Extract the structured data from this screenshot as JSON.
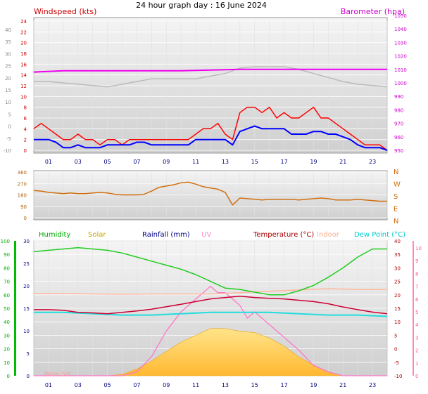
{
  "chart_data": [
    {
      "type": "line",
      "title": "24 hour graph day : 16 June 2024",
      "panel": "wind-pressure",
      "left_axis_label": "Windspeed (kts)",
      "right_axis_label": "Barometer (hpa)",
      "outer_left_ticks": [
        "40",
        "35",
        "30",
        "25",
        "20",
        "15",
        "10",
        "5",
        "0",
        "-5",
        "-10"
      ],
      "left_ticks": [
        "24",
        "22",
        "20",
        "18",
        "16",
        "14",
        "12",
        "10",
        "8",
        "6",
        "4",
        "2",
        "0"
      ],
      "left_range": [
        0,
        24
      ],
      "right_ticks": [
        "1050",
        "1040",
        "1030",
        "1020",
        "1010",
        "1000",
        "990",
        "980",
        "970",
        "960",
        "950"
      ],
      "right_range": [
        946,
        1052
      ],
      "x_ticks": [
        "01",
        "03",
        "05",
        "07",
        "09",
        "11",
        "13",
        "15",
        "17",
        "19",
        "21",
        "23"
      ],
      "x_range": [
        0,
        24
      ],
      "grid": true,
      "series": [
        {
          "color": "#ff0000",
          "x": [
            0,
            0.5,
            1,
            1.5,
            2,
            2.5,
            3,
            3.5,
            4,
            4.5,
            5,
            5.5,
            6,
            6.5,
            7,
            7.5,
            8,
            8.5,
            9,
            9.5,
            10,
            10.5,
            11,
            11.5,
            12,
            12.5,
            13,
            13.5,
            14,
            14.5,
            15,
            15.5,
            16,
            16.5,
            17,
            17.5,
            18,
            18.5,
            19,
            19.5,
            20,
            20.5,
            21,
            21.5,
            22,
            22.5,
            23,
            23.5,
            24
          ],
          "values": [
            4,
            5,
            4,
            3,
            2,
            2,
            3,
            2,
            2,
            1,
            2,
            2,
            1,
            2,
            2,
            2,
            2,
            2,
            2,
            2,
            2,
            2,
            3,
            4,
            4,
            5,
            3,
            2,
            7,
            8,
            8,
            7,
            8,
            6,
            7,
            6,
            6,
            7,
            8,
            6,
            6,
            5,
            4,
            3,
            2,
            1,
            1,
            1,
            0
          ]
        },
        {
          "color": "#0000ff",
          "x": [
            0,
            0.5,
            1,
            1.5,
            2,
            2.5,
            3,
            3.5,
            4,
            4.5,
            5,
            5.5,
            6,
            6.5,
            7,
            7.5,
            8,
            8.5,
            9,
            9.5,
            10,
            10.5,
            11,
            11.5,
            12,
            12.5,
            13,
            13.5,
            14,
            14.5,
            15,
            15.5,
            16,
            16.5,
            17,
            17.5,
            18,
            18.5,
            19,
            19.5,
            20,
            20.5,
            21,
            21.5,
            22,
            22.5,
            23,
            23.5,
            24
          ],
          "values": [
            2,
            2,
            2,
            1.5,
            0.5,
            0.5,
            1,
            0.5,
            0.5,
            0.5,
            1,
            1,
            1,
            1,
            1.5,
            1.5,
            1,
            1,
            1,
            1,
            1,
            1,
            2,
            2,
            2,
            2,
            2,
            1,
            3.5,
            4,
            4.5,
            4,
            4,
            4,
            4,
            3,
            3,
            3,
            3.5,
            3.5,
            3,
            3,
            2.5,
            2,
            1,
            0.5,
            0.5,
            0.5,
            0
          ]
        },
        {
          "color": "#bbbbbb",
          "x": [
            0,
            1,
            2,
            3,
            4,
            5,
            6,
            7,
            8,
            9,
            10,
            11,
            12,
            13,
            14,
            15,
            16,
            17,
            18,
            19,
            20,
            21,
            22,
            23,
            24
          ],
          "values": [
            1001,
            1001,
            1000,
            999,
            998,
            997,
            999,
            1001,
            1003,
            1003,
            1003,
            1003,
            1005,
            1007,
            1011,
            1012,
            1012,
            1012,
            1010,
            1007,
            1004,
            1001,
            999,
            998,
            997
          ]
        },
        {
          "color": "#ee00ee",
          "x": [
            0,
            2,
            4,
            6,
            8,
            10,
            12,
            14,
            16,
            18,
            20,
            22,
            24
          ],
          "values": [
            1008,
            1009,
            1009,
            1009,
            1009,
            1009,
            1009.5,
            1010,
            1010,
            1010,
            1010,
            1010,
            1010
          ]
        }
      ]
    },
    {
      "type": "line",
      "panel": "wind-direction",
      "left_ticks": [
        "360",
        "270",
        "180",
        "90",
        "0"
      ],
      "left_range": [
        0,
        360
      ],
      "right_ticks": [
        "N",
        "W",
        "S",
        "E",
        "N"
      ],
      "grid": true,
      "series": [
        {
          "color": "#d07010",
          "x": [
            0,
            0.5,
            1,
            1.5,
            2,
            2.5,
            3,
            3.5,
            4,
            4.5,
            5,
            5.5,
            6,
            6.5,
            7,
            7.5,
            8,
            8.5,
            9,
            9.5,
            10,
            10.5,
            11,
            11.5,
            12,
            12.5,
            13,
            13.5,
            14,
            14.5,
            15,
            15.5,
            16,
            16.5,
            17,
            17.5,
            18,
            18.5,
            19,
            19.5,
            20,
            20.5,
            21,
            21.5,
            22,
            22.5,
            23,
            23.5,
            24
          ],
          "values": [
            215,
            210,
            200,
            195,
            190,
            195,
            190,
            190,
            195,
            200,
            195,
            185,
            180,
            180,
            180,
            185,
            210,
            240,
            250,
            260,
            275,
            280,
            265,
            245,
            235,
            225,
            200,
            100,
            155,
            150,
            145,
            140,
            145,
            145,
            145,
            145,
            140,
            145,
            150,
            155,
            150,
            140,
            140,
            140,
            145,
            140,
            135,
            130,
            130
          ]
        }
      ]
    },
    {
      "type": "line",
      "panel": "temperature-humidity",
      "legend": [
        {
          "name": "Humidity",
          "color": "#00aa00"
        },
        {
          "name": "Solar",
          "color": "#c8a800"
        },
        {
          "name": "Rainfall (mm)",
          "color": "#000088"
        },
        {
          "name": "UV",
          "color": "#ff88cc"
        },
        {
          "name": "Temperature (°C)",
          "color": "#aa0000"
        },
        {
          "name": "Indoor",
          "color": "#ffb090"
        },
        {
          "name": "Dew Point (°C)",
          "color": "#00cccc"
        }
      ],
      "outer_left_ticks": [
        "100",
        "90",
        "80",
        "70",
        "60",
        "50",
        "40",
        "30",
        "20",
        "10",
        "0"
      ],
      "outer_left_color": "#00aa00",
      "inner_left_ticks": [
        "30",
        "25",
        "20",
        "15",
        "10",
        "5",
        "0"
      ],
      "inner_left_color": "#000088",
      "inner_left_range": [
        0,
        30
      ],
      "right_ticks": [
        "40",
        "35",
        "30",
        "25",
        "20",
        "15",
        "10",
        "5",
        "0",
        "-5",
        "-10"
      ],
      "right_color": "#aa0000",
      "right_range": [
        -10,
        40
      ],
      "uv_ticks": [
        "10",
        "9",
        "8",
        "7",
        "6",
        "5",
        "4",
        "3",
        "2",
        "1",
        "0"
      ],
      "uv_color": "#ff5599",
      "x_ticks": [
        "01",
        "03",
        "05",
        "07",
        "09",
        "11",
        "13",
        "15",
        "17",
        "19",
        "21",
        "23"
      ],
      "x_range": [
        0,
        24
      ],
      "annotation": "Moon Set",
      "grid": true,
      "series": [
        {
          "name": "Humidity",
          "color": "#22cc22",
          "x": [
            0,
            1,
            2,
            3,
            4,
            5,
            6,
            7,
            8,
            9,
            10,
            11,
            12,
            13,
            14,
            15,
            16,
            17,
            18,
            19,
            20,
            21,
            22,
            23,
            24
          ],
          "values": [
            92,
            93,
            94,
            95,
            94,
            93,
            91,
            88,
            85,
            82,
            79,
            75,
            70,
            65,
            64,
            62,
            60,
            60,
            63,
            67,
            73,
            80,
            88,
            94,
            94
          ]
        },
        {
          "name": "Temperature (°C)",
          "color": "#cc0033",
          "x": [
            0,
            1,
            2,
            3,
            4,
            5,
            6,
            7,
            8,
            9,
            10,
            11,
            12,
            13,
            14,
            15,
            16,
            17,
            18,
            19,
            20,
            21,
            22,
            23,
            24
          ],
          "values": [
            14.5,
            14.5,
            14.3,
            13.5,
            13.3,
            13.0,
            13.5,
            14.0,
            14.7,
            15.6,
            16.5,
            17.5,
            18.5,
            19.0,
            19.5,
            19.0,
            18.7,
            18.5,
            18.0,
            17.5,
            16.7,
            15.5,
            14.5,
            13.6,
            13.0
          ]
        },
        {
          "name": "Indoor",
          "color": "#ffb8a0",
          "x": [
            0,
            2,
            4,
            6,
            8,
            10,
            12,
            14,
            16,
            18,
            20,
            22,
            24
          ],
          "values": [
            20.5,
            20.5,
            20.3,
            20.2,
            20.3,
            20.3,
            20.3,
            20.8,
            21.3,
            21.8,
            22.3,
            22.0,
            22.0
          ]
        },
        {
          "name": "Dew Point (°C)",
          "color": "#22dddd",
          "x": [
            0,
            2,
            4,
            6,
            8,
            10,
            12,
            14,
            16,
            18,
            20,
            22,
            24
          ],
          "values": [
            13.5,
            13.5,
            13.0,
            12.5,
            12.5,
            13.0,
            13.5,
            13.5,
            13.5,
            13.0,
            12.5,
            12.5,
            12.0
          ]
        },
        {
          "name": "UV",
          "color": "#ff77cc",
          "x": [
            0,
            5,
            6,
            7,
            8,
            9,
            10,
            11,
            12,
            12.5,
            13,
            13.5,
            14,
            14.5,
            15,
            15.5,
            16,
            17,
            18,
            19,
            20,
            21,
            24
          ],
          "values": [
            0,
            0,
            0,
            0.3,
            1.5,
            3.5,
            5.0,
            6.0,
            7.0,
            6.5,
            6.5,
            6.0,
            5.5,
            4.5,
            5.0,
            4.5,
            4.0,
            3.0,
            2.0,
            0.8,
            0.3,
            0,
            0
          ]
        },
        {
          "name": "Solar",
          "color": "#ffcc55",
          "x": [
            0,
            5,
            6,
            7,
            8,
            9,
            10,
            11,
            12,
            13,
            14,
            15,
            16,
            17,
            18,
            19,
            20,
            21,
            24
          ],
          "values": [
            0,
            0,
            0.5,
            2.5,
            5.5,
            9,
            12.5,
            15,
            17.5,
            17.5,
            16.5,
            16,
            14,
            11,
            7,
            4,
            1.5,
            0,
            0
          ]
        }
      ]
    }
  ]
}
